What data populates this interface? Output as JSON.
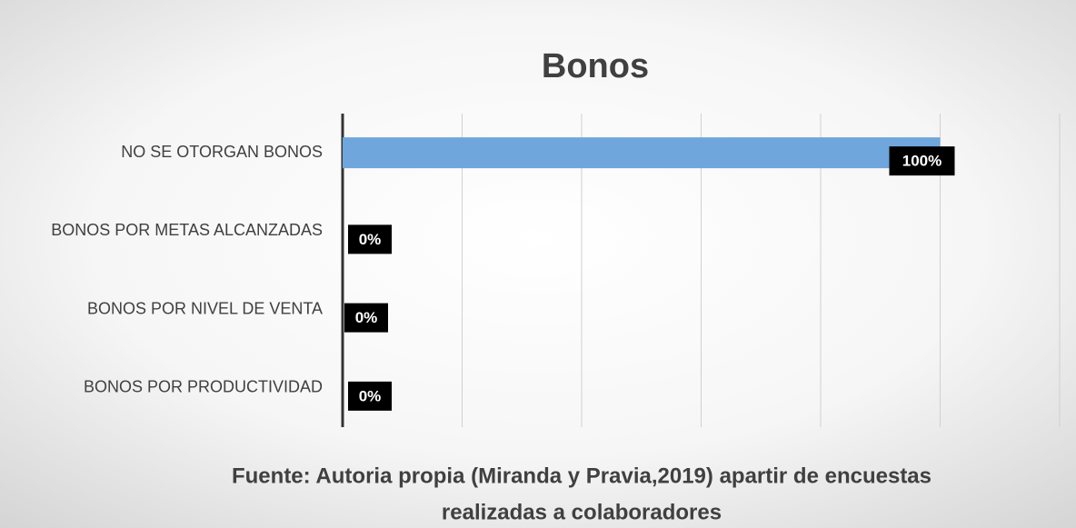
{
  "chart_data": {
    "type": "barh",
    "title": "Bonos",
    "categories": [
      "NO SE OTORGAN BONOS",
      "BONOS POR METAS ALCANZADAS",
      "BONOS POR NIVEL DE VENTA",
      "BONOS POR PRODUCTIVIDAD"
    ],
    "values": [
      100,
      0,
      0,
      0
    ],
    "value_labels": [
      "100%",
      "0%",
      "0%",
      "0%"
    ],
    "color": "#6fa6dc",
    "xlim": [
      0,
      120
    ],
    "xticks": [
      0,
      20,
      40,
      60,
      80,
      100,
      120
    ],
    "grid": true,
    "source": [
      "Fuente: Autoria propia (Miranda y Pravia,2019) apartir de encuestas",
      "realizadas a colaboradores"
    ]
  }
}
